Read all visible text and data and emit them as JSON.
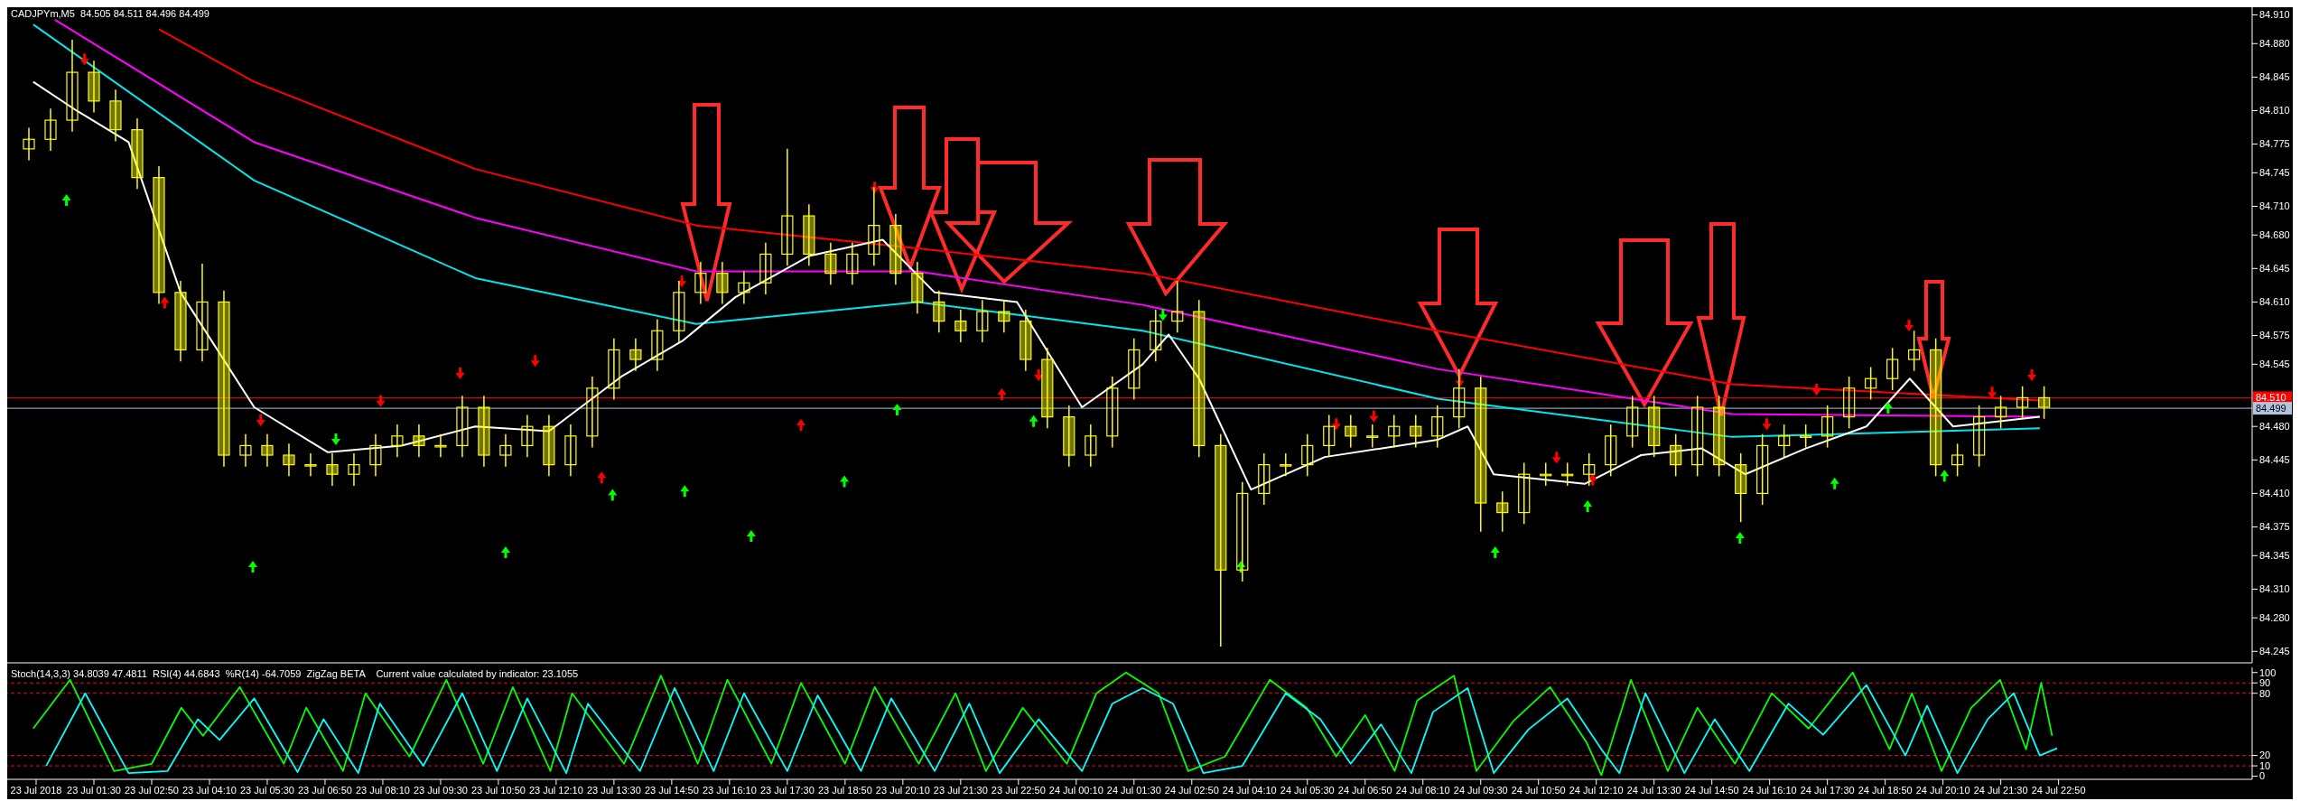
{
  "chart_data": [
    {
      "type": "candlestick",
      "title": "CADJPYm,M5  84.505 84.511 84.496 84.499",
      "color": "#ffff00",
      "tick_labels": "y",
      "xlim": [
        "2018-07-22T23:30",
        "2018-07-25T03:18"
      ],
      "ylim": [
        84.233,
        84.918
      ],
      "yticks": [
        84.245,
        {
          "value": 84.28,
          "label": "84.280"
        },
        {
          "value": 84.31,
          "label": "84.310"
        },
        84.345,
        84.375,
        {
          "value": 84.41,
          "label": "84.410"
        },
        84.445,
        {
          "value": 84.48,
          "label": "84.480"
        },
        84.545,
        84.575,
        {
          "value": 84.61,
          "label": "84.610"
        },
        84.645,
        {
          "value": 84.68,
          "label": "84.680"
        },
        {
          "value": 84.71,
          "label": "84.710"
        },
        84.745,
        84.775,
        {
          "value": 84.81,
          "label": "84.810"
        },
        84.845,
        {
          "value": 84.88,
          "label": "84.880"
        },
        {
          "value": 84.91,
          "label": "84.910"
        }
      ],
      "ref_lines": [
        {
          "axis": "y",
          "value": 84.51,
          "label": "84.510",
          "color": "#ff0000"
        },
        {
          "axis": "y",
          "value": 84.499,
          "label": "84.499",
          "color": "#b0c4de"
        }
      ],
      "x": [
        "2018-07-23T00:00",
        "2018-07-23T00:30",
        "2018-07-23T01:00",
        "2018-07-23T01:30",
        "2018-07-23T02:00",
        "2018-07-23T02:30",
        "2018-07-23T03:00",
        "2018-07-23T03:30",
        "2018-07-23T04:00",
        "2018-07-23T04:30",
        "2018-07-23T05:00",
        "2018-07-23T05:30",
        "2018-07-23T06:00",
        "2018-07-23T06:30",
        "2018-07-23T07:00",
        "2018-07-23T07:30",
        "2018-07-23T08:00",
        "2018-07-23T08:30",
        "2018-07-23T09:00",
        "2018-07-23T09:30",
        "2018-07-23T10:00",
        "2018-07-23T10:30",
        "2018-07-23T11:00",
        "2018-07-23T11:30",
        "2018-07-23T12:00",
        "2018-07-23T12:30",
        "2018-07-23T13:00",
        "2018-07-23T13:30",
        "2018-07-23T14:00",
        "2018-07-23T14:30",
        "2018-07-23T15:00",
        "2018-07-23T15:30",
        "2018-07-23T16:00",
        "2018-07-23T16:30",
        "2018-07-23T17:00",
        "2018-07-23T17:30",
        "2018-07-23T18:00",
        "2018-07-23T18:30",
        "2018-07-23T19:00",
        "2018-07-23T19:30",
        "2018-07-23T20:00",
        "2018-07-23T20:30",
        "2018-07-23T21:00",
        "2018-07-23T21:30",
        "2018-07-23T22:00",
        "2018-07-23T22:30",
        "2018-07-23T23:00",
        "2018-07-23T23:30",
        "2018-07-24T00:00",
        "2018-07-24T00:30",
        "2018-07-24T01:00",
        "2018-07-24T01:30",
        "2018-07-24T02:00",
        "2018-07-24T02:30",
        "2018-07-24T03:00",
        "2018-07-24T03:30",
        "2018-07-24T04:00",
        "2018-07-24T04:30",
        "2018-07-24T05:00",
        "2018-07-24T05:30",
        "2018-07-24T06:00",
        "2018-07-24T06:30",
        "2018-07-24T07:00",
        "2018-07-24T07:30",
        "2018-07-24T08:00",
        "2018-07-24T08:30",
        "2018-07-24T09:00",
        "2018-07-24T09:30",
        "2018-07-24T10:00",
        "2018-07-24T10:30",
        "2018-07-24T11:00",
        "2018-07-24T11:30",
        "2018-07-24T12:00",
        "2018-07-24T12:30",
        "2018-07-24T13:00",
        "2018-07-24T13:30",
        "2018-07-24T14:00",
        "2018-07-24T14:30",
        "2018-07-24T15:00",
        "2018-07-24T15:30",
        "2018-07-24T16:00",
        "2018-07-24T16:30",
        "2018-07-24T17:00",
        "2018-07-24T17:30",
        "2018-07-24T18:00",
        "2018-07-24T18:30",
        "2018-07-24T19:00",
        "2018-07-24T19:30",
        "2018-07-24T20:00",
        "2018-07-24T20:30",
        "2018-07-24T21:00",
        "2018-07-24T21:30",
        "2018-07-24T22:00",
        "2018-07-24T22:30"
      ],
      "ohlc": [
        [
          84.77,
          84.792,
          84.758,
          84.78
        ],
        [
          84.78,
          84.812,
          84.768,
          84.8
        ],
        [
          84.8,
          84.884,
          84.788,
          84.85
        ],
        [
          84.85,
          84.862,
          84.808,
          84.82
        ],
        [
          84.82,
          84.832,
          84.778,
          84.79
        ],
        [
          84.79,
          84.802,
          84.728,
          84.74
        ],
        [
          84.74,
          84.752,
          84.608,
          84.62
        ],
        [
          84.62,
          84.632,
          84.548,
          84.56
        ],
        [
          84.56,
          84.65,
          84.548,
          84.61
        ],
        [
          84.61,
          84.622,
          84.438,
          84.45
        ],
        [
          84.45,
          84.472,
          84.438,
          84.46
        ],
        [
          84.46,
          84.472,
          84.438,
          84.45
        ],
        [
          84.45,
          84.462,
          84.428,
          84.44
        ],
        [
          84.44,
          84.452,
          84.428,
          84.44
        ],
        [
          84.44,
          84.452,
          84.418,
          84.43
        ],
        [
          84.43,
          84.452,
          84.418,
          84.44
        ],
        [
          84.44,
          84.472,
          84.428,
          84.46
        ],
        [
          84.46,
          84.482,
          84.448,
          84.47
        ],
        [
          84.47,
          84.482,
          84.448,
          84.46
        ],
        [
          84.46,
          84.472,
          84.448,
          84.46
        ],
        [
          84.46,
          84.512,
          84.448,
          84.5
        ],
        [
          84.5,
          84.512,
          84.438,
          84.45
        ],
        [
          84.45,
          84.472,
          84.438,
          84.46
        ],
        [
          84.46,
          84.492,
          84.448,
          84.48
        ],
        [
          84.48,
          84.492,
          84.428,
          84.44
        ],
        [
          84.44,
          84.482,
          84.428,
          84.47
        ],
        [
          84.47,
          84.532,
          84.458,
          84.52
        ],
        [
          84.52,
          84.572,
          84.508,
          84.56
        ],
        [
          84.56,
          84.572,
          84.538,
          84.55
        ],
        [
          84.55,
          84.592,
          84.538,
          84.58
        ],
        [
          84.58,
          84.632,
          84.568,
          84.62
        ],
        [
          84.62,
          84.652,
          84.608,
          84.64
        ],
        [
          84.64,
          84.652,
          84.608,
          84.62
        ],
        [
          84.62,
          84.642,
          84.608,
          84.63
        ],
        [
          84.63,
          84.672,
          84.618,
          84.66
        ],
        [
          84.66,
          84.77,
          84.648,
          84.7
        ],
        [
          84.7,
          84.712,
          84.648,
          84.66
        ],
        [
          84.66,
          84.672,
          84.628,
          84.64
        ],
        [
          84.64,
          84.672,
          84.628,
          84.66
        ],
        [
          84.66,
          84.73,
          84.648,
          84.69
        ],
        [
          84.69,
          84.702,
          84.628,
          84.64
        ],
        [
          84.64,
          84.652,
          84.598,
          84.61
        ],
        [
          84.61,
          84.622,
          84.578,
          84.59
        ],
        [
          84.59,
          84.602,
          84.568,
          84.58
        ],
        [
          84.58,
          84.612,
          84.568,
          84.6
        ],
        [
          84.6,
          84.612,
          84.578,
          84.59
        ],
        [
          84.59,
          84.602,
          84.538,
          84.55
        ],
        [
          84.55,
          84.562,
          84.478,
          84.49
        ],
        [
          84.49,
          84.502,
          84.438,
          84.45
        ],
        [
          84.45,
          84.482,
          84.438,
          84.47
        ],
        [
          84.47,
          84.532,
          84.458,
          84.52
        ],
        [
          84.52,
          84.572,
          84.508,
          84.56
        ],
        [
          84.56,
          84.602,
          84.548,
          84.59
        ],
        [
          84.59,
          84.632,
          84.578,
          84.6
        ],
        [
          84.6,
          84.612,
          84.448,
          84.46
        ],
        [
          84.46,
          84.472,
          84.25,
          84.33
        ],
        [
          84.33,
          84.422,
          84.318,
          84.41
        ],
        [
          84.41,
          84.452,
          84.398,
          84.44
        ],
        [
          84.44,
          84.452,
          84.428,
          84.44
        ],
        [
          84.44,
          84.472,
          84.428,
          84.46
        ],
        [
          84.46,
          84.492,
          84.448,
          84.48
        ],
        [
          84.48,
          84.492,
          84.458,
          84.47
        ],
        [
          84.47,
          84.482,
          84.458,
          84.47
        ],
        [
          84.47,
          84.492,
          84.458,
          84.48
        ],
        [
          84.48,
          84.492,
          84.458,
          84.47
        ],
        [
          84.47,
          84.502,
          84.458,
          84.49
        ],
        [
          84.49,
          84.54,
          84.478,
          84.52
        ],
        [
          84.52,
          84.532,
          84.37,
          84.4
        ],
        [
          84.4,
          84.412,
          84.37,
          84.39
        ],
        [
          84.39,
          84.442,
          84.378,
          84.43
        ],
        [
          84.43,
          84.442,
          84.418,
          84.43
        ],
        [
          84.43,
          84.442,
          84.418,
          84.43
        ],
        [
          84.43,
          84.452,
          84.418,
          84.44
        ],
        [
          84.44,
          84.482,
          84.428,
          84.47
        ],
        [
          84.47,
          84.512,
          84.458,
          84.5
        ],
        [
          84.5,
          84.512,
          84.448,
          84.46
        ],
        [
          84.46,
          84.472,
          84.428,
          84.44
        ],
        [
          84.44,
          84.512,
          84.428,
          84.5
        ],
        [
          84.5,
          84.512,
          84.428,
          84.44
        ],
        [
          84.44,
          84.452,
          84.38,
          84.41
        ],
        [
          84.41,
          84.472,
          84.398,
          84.46
        ],
        [
          84.46,
          84.482,
          84.448,
          84.47
        ],
        [
          84.47,
          84.482,
          84.458,
          84.47
        ],
        [
          84.47,
          84.502,
          84.458,
          84.49
        ],
        [
          84.49,
          84.532,
          84.478,
          84.52
        ],
        [
          84.52,
          84.542,
          84.508,
          84.53
        ],
        [
          84.53,
          84.562,
          84.518,
          84.55
        ],
        [
          84.55,
          84.58,
          84.538,
          84.56
        ],
        [
          84.56,
          84.572,
          84.428,
          84.44
        ],
        [
          84.44,
          84.462,
          84.428,
          84.45
        ],
        [
          84.45,
          84.502,
          84.438,
          84.49
        ],
        [
          84.49,
          84.512,
          84.478,
          84.5
        ],
        [
          84.5,
          84.522,
          84.488,
          84.51
        ],
        [
          84.51,
          84.522,
          84.488,
          84.5
        ]
      ],
      "series": [
        {
          "type": "line",
          "color": "#ff0000",
          "x": [
            "2018-07-23T03:00",
            "2018-07-23T05:12",
            "2018-07-23T10:18",
            "2018-07-23T15:24",
            "2018-07-23T20:30",
            "2018-07-24T01:42",
            "2018-07-24T08:30",
            "2018-07-24T15:18",
            "2018-07-24T22:24"
          ],
          "values": [
            84.895,
            84.84,
            84.749,
            84.69,
            84.666,
            84.64,
            84.58,
            84.524,
            84.507
          ]
        },
        {
          "type": "line",
          "color": "#ff00ff",
          "x": [
            "2018-07-23T00:36",
            "2018-07-23T05:12",
            "2018-07-23T10:18",
            "2018-07-23T15:24",
            "2018-07-23T20:30",
            "2018-07-24T01:42",
            "2018-07-24T08:30",
            "2018-07-24T15:18",
            "2018-07-24T22:24"
          ],
          "values": [
            84.905,
            84.777,
            84.698,
            84.642,
            84.642,
            84.607,
            84.54,
            84.493,
            84.49
          ]
        },
        {
          "type": "line",
          "color": "#00e5ee",
          "x": [
            "2018-07-23T00:06",
            "2018-07-23T05:12",
            "2018-07-23T10:18",
            "2018-07-23T15:24",
            "2018-07-23T20:30",
            "2018-07-24T01:42",
            "2018-07-24T08:30",
            "2018-07-24T15:18",
            "2018-07-24T22:24"
          ],
          "values": [
            84.9,
            84.737,
            84.635,
            84.587,
            84.61,
            84.58,
            84.509,
            84.469,
            84.478
          ]
        },
        {
          "type": "line",
          "color": "#ffffff",
          "x": [
            "2018-07-23T00:06",
            "2018-07-23T01:06",
            "2018-07-23T02:18",
            "2018-07-23T03:30",
            "2018-07-23T05:12",
            "2018-07-23T06:54",
            "2018-07-23T08:36",
            "2018-07-23T10:18",
            "2018-07-23T12:00",
            "2018-07-23T13:42",
            "2018-07-23T15:06",
            "2018-07-23T16:18",
            "2018-07-23T18:00",
            "2018-07-23T19:42",
            "2018-07-23T20:54",
            "2018-07-23T22:48",
            "2018-07-24T00:18",
            "2018-07-24T01:42",
            "2018-07-24T02:18",
            "2018-07-24T03:00",
            "2018-07-24T04:12",
            "2018-07-24T05:54",
            "2018-07-24T08:30",
            "2018-07-24T09:12",
            "2018-07-24T09:48",
            "2018-07-24T11:54",
            "2018-07-24T13:12",
            "2018-07-24T14:36",
            "2018-07-24T15:36",
            "2018-07-24T17:00",
            "2018-07-24T18:24",
            "2018-07-24T19:24",
            "2018-07-24T20:24",
            "2018-07-24T22:24"
          ],
          "values": [
            84.84,
            84.81,
            84.777,
            84.62,
            84.5,
            84.453,
            84.46,
            84.48,
            84.475,
            84.533,
            84.57,
            84.615,
            84.658,
            84.675,
            84.62,
            84.61,
            84.5,
            84.545,
            84.576,
            84.53,
            84.414,
            84.448,
            84.466,
            84.48,
            84.43,
            84.42,
            84.45,
            84.457,
            84.43,
            84.457,
            84.48,
            84.53,
            84.48,
            84.49
          ]
        },
        {
          "type": "scatter",
          "marker": "triangle",
          "color": "#ff0000",
          "x": [
            "2018-07-23T01:17",
            "2018-07-23T03:08",
            "2018-07-23T05:21",
            "2018-07-23T08:07",
            "2018-07-23T09:57",
            "2018-07-23T11:41",
            "2018-07-23T13:13",
            "2018-07-23T15:04",
            "2018-07-23T17:49",
            "2018-07-23T19:31",
            "2018-07-23T22:27",
            "2018-07-23T23:18",
            "2018-07-24T06:10",
            "2018-07-24T07:02",
            "2018-07-24T09:01",
            "2018-07-24T11:15",
            "2018-07-24T12:05",
            "2018-07-24T16:06",
            "2018-07-24T17:15",
            "2018-07-24T19:23",
            "2018-07-24T21:18",
            "2018-07-24T22:13"
          ],
          "values": [
            84.862,
            84.611,
            84.485,
            84.505,
            84.534,
            84.547,
            84.428,
            84.63,
            84.483,
            84.728,
            84.515,
            84.532,
            84.481,
            84.489,
            84.526,
            84.446,
            84.426,
            84.481,
            84.517,
            84.584,
            84.514,
            84.532
          ]
        },
        {
          "type": "scatter",
          "marker": "triangle",
          "color": "#00ff00",
          "x": [
            "2018-07-23T00:52",
            "2018-07-23T05:10",
            "2018-07-23T07:05",
            "2018-07-23T11:00",
            "2018-07-23T13:28",
            "2018-07-23T15:08",
            "2018-07-23T16:40",
            "2018-07-23T18:49",
            "2018-07-23T20:02",
            "2018-07-23T23:11",
            "2018-07-24T02:10",
            "2018-07-24T03:58",
            "2018-07-24T09:50",
            "2018-07-24T11:58",
            "2018-07-24T15:29",
            "2018-07-24T17:40",
            "2018-07-24T18:54",
            "2018-07-24T20:12"
          ],
          "values": [
            84.718,
            84.335,
            84.465,
            84.35,
            84.41,
            84.414,
            84.367,
            84.424,
            84.499,
            84.487,
            84.595,
            84.335,
            84.35,
            84.398,
            84.365,
            84.422,
            84.501,
            84.43
          ]
        }
      ]
    },
    {
      "type": "line",
      "title": "Stoch(14,3,3) 34.8039 47.4811  RSI(4) 44.6843  %R(14) -64.7059  ZigZag BETA    Current value calculated by indicator: 23.1055",
      "xlim": [
        "2018-07-22T23:30",
        "2018-07-25T03:18"
      ],
      "xticks": [
        {
          "value": "2018-07-23T00:10",
          "label": "23 Jul 2018"
        },
        {
          "value": "2018-07-23T01:30",
          "label": "23 Jul 01:30"
        },
        {
          "value": "2018-07-23T02:50",
          "label": "23 Jul 02:50"
        },
        {
          "value": "2018-07-23T04:10",
          "label": "23 Jul 04:10"
        },
        {
          "value": "2018-07-23T05:30",
          "label": "23 Jul 05:30"
        },
        {
          "value": "2018-07-23T06:50",
          "label": "23 Jul 06:50"
        },
        {
          "value": "2018-07-23T08:10",
          "label": "23 Jul 08:10"
        },
        {
          "value": "2018-07-23T09:30",
          "label": "23 Jul 09:30"
        },
        {
          "value": "2018-07-23T10:50",
          "label": "23 Jul 10:50"
        },
        {
          "value": "2018-07-23T12:10",
          "label": "23 Jul 12:10"
        },
        {
          "value": "2018-07-23T13:30",
          "label": "23 Jul 13:30"
        },
        {
          "value": "2018-07-23T14:50",
          "label": "23 Jul 14:50"
        },
        {
          "value": "2018-07-23T16:10",
          "label": "23 Jul 16:10"
        },
        {
          "value": "2018-07-23T17:30",
          "label": "23 Jul 17:30"
        },
        {
          "value": "2018-07-23T18:50",
          "label": "23 Jul 18:50"
        },
        {
          "value": "2018-07-23T20:10",
          "label": "23 Jul 20:10"
        },
        {
          "value": "2018-07-23T21:30",
          "label": "23 Jul 21:30"
        },
        {
          "value": "2018-07-23T22:50",
          "label": "23 Jul 22:50"
        },
        {
          "value": "2018-07-24T00:10",
          "label": "24 Jul 00:10"
        },
        {
          "value": "2018-07-24T01:30",
          "label": "24 Jul 01:30"
        },
        {
          "value": "2018-07-24T02:50",
          "label": "24 Jul 02:50"
        },
        {
          "value": "2018-07-24T04:10",
          "label": "24 Jul 04:10"
        },
        {
          "value": "2018-07-24T05:30",
          "label": "24 Jul 05:30"
        },
        {
          "value": "2018-07-24T06:50",
          "label": "24 Jul 06:50"
        },
        {
          "value": "2018-07-24T08:10",
          "label": "24 Jul 08:10"
        },
        {
          "value": "2018-07-24T09:30",
          "label": "24 Jul 09:30"
        },
        {
          "value": "2018-07-24T10:50",
          "label": "24 Jul 10:50"
        },
        {
          "value": "2018-07-24T12:10",
          "label": "24 Jul 12:10"
        },
        {
          "value": "2018-07-24T13:30",
          "label": "24 Jul 13:30"
        },
        {
          "value": "2018-07-24T14:50",
          "label": "24 Jul 14:50"
        },
        {
          "value": "2018-07-24T16:10",
          "label": "24 Jul 16:10"
        },
        {
          "value": "2018-07-24T17:30",
          "label": "24 Jul 17:30"
        },
        {
          "value": "2018-07-24T18:50",
          "label": "24 Jul 18:50"
        },
        {
          "value": "2018-07-24T20:10",
          "label": "24 Jul 20:10"
        },
        {
          "value": "2018-07-24T21:30",
          "label": "24 Jul 21:30"
        },
        {
          "value": "2018-07-24T22:50",
          "label": "24 Jul 22:50"
        }
      ],
      "ylim": [
        -3,
        105
      ],
      "yticks": [
        0,
        10,
        20,
        80,
        90,
        100
      ],
      "ref_lines": [
        {
          "axis": "y",
          "value": 10,
          "color": "#ff0000",
          "line_style": "dashed"
        },
        {
          "axis": "y",
          "value": 20,
          "color": "#ff0000",
          "line_style": "dashed"
        },
        {
          "axis": "y",
          "value": 80,
          "color": "#ff0000",
          "line_style": "dashed"
        },
        {
          "axis": "y",
          "value": 90,
          "color": "#ff0000",
          "line_style": "dashed"
        }
      ],
      "series": [
        {
          "color": "#00ff00",
          "x": [
            "2018-07-23T00:06",
            "2018-07-23T00:57",
            "2018-07-23T01:58",
            "2018-07-23T02:50",
            "2018-07-23T03:31",
            "2018-07-23T04:01",
            "2018-07-23T04:52",
            "2018-07-23T05:53",
            "2018-07-23T06:24",
            "2018-07-23T07:15",
            "2018-07-23T07:46",
            "2018-07-23T08:47",
            "2018-07-23T09:38",
            "2018-07-23T10:29",
            "2018-07-23T11:10",
            "2018-07-23T12:02",
            "2018-07-23T12:32",
            "2018-07-23T13:44",
            "2018-07-23T14:35",
            "2018-07-23T15:26",
            "2018-07-23T16:07",
            "2018-07-23T17:08",
            "2018-07-23T17:49",
            "2018-07-23T18:50",
            "2018-07-23T19:31",
            "2018-07-23T20:32",
            "2018-07-23T21:23",
            "2018-07-23T22:05",
            "2018-07-23T22:56",
            "2018-07-23T23:57",
            "2018-07-24T00:38",
            "2018-07-24T01:19",
            "2018-07-24T02:04",
            "2018-07-24T02:45",
            "2018-07-24T03:36",
            "2018-07-24T04:38",
            "2018-07-24T05:29",
            "2018-07-24T06:10",
            "2018-07-24T06:50",
            "2018-07-24T07:31",
            "2018-07-24T08:02",
            "2018-07-24T08:53",
            "2018-07-24T09:24",
            "2018-07-24T10:15",
            "2018-07-24T11:06",
            "2018-07-24T11:57",
            "2018-07-24T12:17",
            "2018-07-24T12:58",
            "2018-07-24T13:49",
            "2018-07-24T14:30",
            "2018-07-24T15:22",
            "2018-07-24T16:13",
            "2018-07-24T17:04",
            "2018-07-24T18:05",
            "2018-07-24T18:56",
            "2018-07-24T19:27",
            "2018-07-24T20:08",
            "2018-07-24T20:49",
            "2018-07-24T21:29",
            "2018-07-24T22:05",
            "2018-07-24T22:26",
            "2018-07-24T22:41"
          ],
          "values": [
            46,
            93,
            5,
            12,
            66,
            39,
            86,
            12,
            66,
            5,
            80,
            19,
            93,
            12,
            86,
            5,
            80,
            12,
            97,
            12,
            93,
            12,
            90,
            12,
            86,
            12,
            80,
            5,
            66,
            12,
            80,
            100,
            80,
            5,
            19,
            93,
            66,
            19,
            59,
            5,
            73,
            97,
            5,
            53,
            86,
            32,
            1,
            93,
            5,
            66,
            12,
            80,
            46,
            100,
            26,
            80,
            5,
            66,
            93,
            26,
            90,
            39
          ]
        },
        {
          "color": "#00ffff",
          "x": [
            "2018-07-23T00:24",
            "2018-07-23T01:18",
            "2018-07-23T02:18",
            "2018-07-23T03:12",
            "2018-07-23T03:54",
            "2018-07-23T04:24",
            "2018-07-23T05:12",
            "2018-07-23T06:12",
            "2018-07-23T06:48",
            "2018-07-23T07:36",
            "2018-07-23T08:06",
            "2018-07-23T09:06",
            "2018-07-23T10:00",
            "2018-07-23T10:48",
            "2018-07-23T11:30",
            "2018-07-23T12:24",
            "2018-07-23T12:54",
            "2018-07-23T14:06",
            "2018-07-23T14:54",
            "2018-07-23T15:48",
            "2018-07-23T16:30",
            "2018-07-23T17:30",
            "2018-07-23T18:12",
            "2018-07-23T19:12",
            "2018-07-23T19:54",
            "2018-07-23T20:54",
            "2018-07-23T21:42",
            "2018-07-23T22:24",
            "2018-07-23T23:18",
            "2018-07-24T00:18",
            "2018-07-24T01:00",
            "2018-07-24T01:42",
            "2018-07-24T02:24",
            "2018-07-24T03:06",
            "2018-07-24T04:00",
            "2018-07-24T05:00",
            "2018-07-24T05:48",
            "2018-07-24T06:30",
            "2018-07-24T07:12",
            "2018-07-24T07:54",
            "2018-07-24T08:24",
            "2018-07-24T09:12",
            "2018-07-24T09:48",
            "2018-07-24T10:36",
            "2018-07-24T11:30",
            "2018-07-24T12:18",
            "2018-07-24T12:42",
            "2018-07-24T13:18",
            "2018-07-24T14:12",
            "2018-07-24T14:54",
            "2018-07-24T15:42",
            "2018-07-24T16:36",
            "2018-07-24T17:24",
            "2018-07-24T18:24",
            "2018-07-24T19:18",
            "2018-07-24T19:48",
            "2018-07-24T20:30",
            "2018-07-24T21:12",
            "2018-07-24T21:48",
            "2018-07-24T22:24",
            "2018-07-24T22:48"
          ],
          "values": [
            10,
            80,
            3,
            5,
            55,
            35,
            75,
            4,
            55,
            3,
            70,
            10,
            80,
            5,
            75,
            3,
            70,
            5,
            85,
            5,
            80,
            5,
            78,
            5,
            75,
            5,
            70,
            3,
            55,
            5,
            70,
            85,
            70,
            3,
            10,
            80,
            55,
            12,
            50,
            3,
            62,
            85,
            3,
            45,
            75,
            25,
            3,
            80,
            3,
            55,
            5,
            70,
            40,
            88,
            20,
            68,
            3,
            55,
            80,
            20,
            27
          ]
        }
      ]
    }
  ]
}
